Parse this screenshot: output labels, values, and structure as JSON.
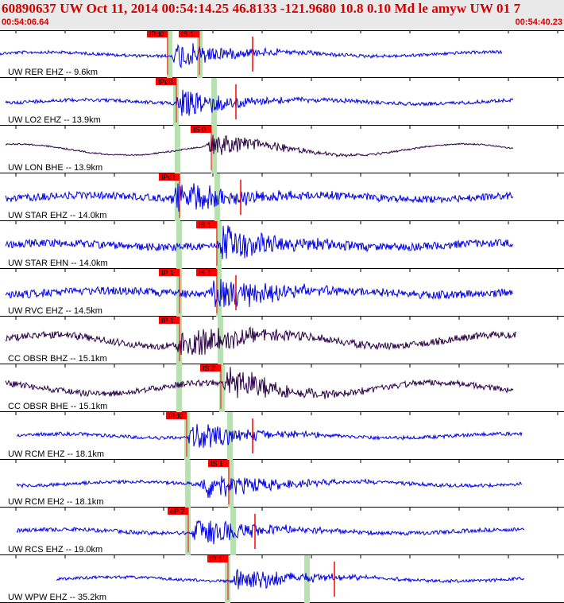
{
  "header": {
    "title": "60890637 UW Oct 11, 2014 00:54:14.25   46.8133 -121.9680 10.8 0.10 Md le amyw UW 01     7",
    "time_start": "00:54:06.64",
    "time_end": "00:54:40.23"
  },
  "colors": {
    "header_bg": "#e9e9e9",
    "header_text": "#d40000",
    "trace_blue": "#0000e6",
    "trace_dark": "#2a0046",
    "pick_red": "#ff0000",
    "window_green": "#b9e0b0"
  },
  "traces": [
    {
      "label": "UW RER EHZ -- 9.6km",
      "color": "blue",
      "amp": 0.3,
      "picks": [
        "IPd0",
        "IS 1"
      ],
      "start": 0.0,
      "end": 0.89
    },
    {
      "label": "UW LO2 EHZ -- 13.9km",
      "color": "blue",
      "amp": 0.35,
      "picks": [
        "IPd0"
      ],
      "start": 0.01,
      "end": 0.91
    },
    {
      "label": "UW LON BHE -- 13.9km",
      "color": "dark",
      "amp": 0.15,
      "picks": [
        "IS 0"
      ],
      "start": 0.01,
      "end": 0.91
    },
    {
      "label": "UW STAR EHZ -- 14.0km",
      "color": "blue",
      "amp": 0.7,
      "picks": [
        "IPd1"
      ],
      "start": 0.01,
      "end": 0.91
    },
    {
      "label": "UW STAR EHN -- 14.0km",
      "color": "blue",
      "amp": 0.75,
      "picks": [
        "IS 1"
      ],
      "start": 0.01,
      "end": 0.91
    },
    {
      "label": "UW RVC EHZ -- 14.5km",
      "color": "blue",
      "amp": 0.8,
      "picks": [
        "IP 1",
        "IS 1"
      ],
      "start": 0.01,
      "end": 0.91
    },
    {
      "label": "CC OBSR BHZ -- 15.1km",
      "color": "dark",
      "amp": 0.7,
      "picks": [
        "IP 1"
      ],
      "start": 0.01,
      "end": 0.915
    },
    {
      "label": "CC OBSR BHE -- 15.1km",
      "color": "dark",
      "amp": 0.6,
      "picks": [
        "IS 2"
      ],
      "start": 0.01,
      "end": 0.91
    },
    {
      "label": "UW RCM EHZ -- 18.1km",
      "color": "blue",
      "amp": 0.35,
      "picks": [
        "IPd0"
      ],
      "start": 0.03,
      "end": 0.925
    },
    {
      "label": "UW RCM EH2 -- 18.1km",
      "color": "blue",
      "amp": 0.35,
      "picks": [
        "IS 1"
      ],
      "start": 0.03,
      "end": 0.925
    },
    {
      "label": "UW RCS EHZ -- 19.0km",
      "color": "blue",
      "amp": 0.4,
      "picks": [
        "eP 2"
      ],
      "start": 0.03,
      "end": 0.93
    },
    {
      "label": "UW WPW EHZ -- 35.2km",
      "color": "blue",
      "amp": 0.3,
      "picks": [
        "IP 1"
      ],
      "start": 0.1,
      "end": 0.93
    }
  ]
}
